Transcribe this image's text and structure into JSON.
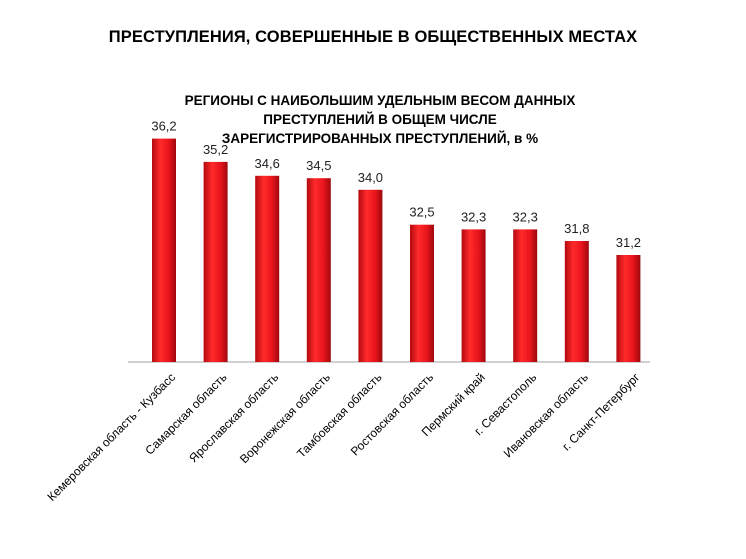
{
  "page_title": "ПРЕСТУПЛЕНИЯ, СОВЕРШЕННЫЕ В ОБЩЕСТВЕННЫХ МЕСТАХ",
  "chart_data": {
    "type": "bar",
    "title_lines": [
      "РЕГИОНЫ С НАИБОЛЬШИМ УДЕЛЬНЫМ ВЕСОМ ДАННЫХ",
      "ПРЕСТУПЛЕНИЙ В ОБЩЕМ ЧИСЛЕ",
      "ЗАРЕГИСТРИРОВАННЫХ ПРЕСТУПЛЕНИЙ, в %"
    ],
    "categories": [
      "Кемеровская область - Кузбасс",
      "Самарская область",
      "Ярославская область",
      "Воронежская область",
      "Тамбовская область",
      "Ростовская область",
      "Пермский край",
      "г. Севастополь",
      "Ивановская область",
      "г. Санкт-Петербург"
    ],
    "values": [
      36.2,
      35.2,
      34.6,
      34.5,
      34.0,
      32.5,
      32.3,
      32.3,
      31.8,
      31.2
    ],
    "value_labels": [
      "36,2",
      "35,2",
      "34,6",
      "34,5",
      "34,0",
      "32,5",
      "32,3",
      "32,3",
      "31,8",
      "31,2"
    ],
    "ylim": [
      26.6,
      37
    ],
    "bar_color": "#e8141c",
    "grid": false,
    "legend": "none",
    "xlabel": "",
    "ylabel": ""
  }
}
